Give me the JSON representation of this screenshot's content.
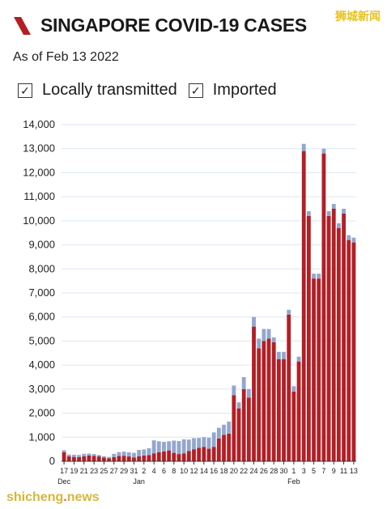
{
  "header": {
    "title": "SINGAPORE COVID-19 CASES",
    "subtitle": "As of Feb 13 2022",
    "watermark_top": "狮城新闻"
  },
  "legend": {
    "local_label": "Locally transmitted",
    "imported_label": "Imported",
    "check_glyph": "✓"
  },
  "watermark_bottom": {
    "left": "shicheng",
    "dot": ".",
    "right": "news"
  },
  "colors": {
    "local": "#b41e24",
    "imported": "#93a6cf",
    "grid": "#dde6f3",
    "brand": "#b41e24"
  },
  "chart_data": {
    "type": "bar",
    "stacked": true,
    "ylim": [
      0,
      14000
    ],
    "yticks": [
      0,
      1000,
      2000,
      3000,
      4000,
      5000,
      6000,
      7000,
      8000,
      9000,
      10000,
      11000,
      12000,
      13000,
      14000
    ],
    "ytick_labels": [
      "0",
      "1,000",
      "2,000",
      "3,000",
      "4,000",
      "5,000",
      "6,000",
      "7,000",
      "8,000",
      "9,000",
      "10,000",
      "11,000",
      "12,000",
      "13,000",
      "14,000"
    ],
    "month_labels": [
      {
        "index": 0,
        "label": "Dec"
      },
      {
        "index": 15,
        "label": "Jan"
      },
      {
        "index": 46,
        "label": "Feb"
      }
    ],
    "categories": [
      "Dec 17",
      "Dec 18",
      "Dec 19",
      "Dec 20",
      "Dec 21",
      "Dec 22",
      "Dec 23",
      "Dec 24",
      "Dec 25",
      "Dec 26",
      "Dec 27",
      "Dec 28",
      "Dec 29",
      "Dec 30",
      "Dec 31",
      "Jan 1",
      "Jan 2",
      "Jan 3",
      "Jan 4",
      "Jan 5",
      "Jan 6",
      "Jan 7",
      "Jan 8",
      "Jan 9",
      "Jan 10",
      "Jan 11",
      "Jan 12",
      "Jan 13",
      "Jan 14",
      "Jan 15",
      "Jan 16",
      "Jan 17",
      "Jan 18",
      "Jan 19",
      "Jan 20",
      "Jan 21",
      "Jan 22",
      "Jan 23",
      "Jan 24",
      "Jan 25",
      "Jan 26",
      "Jan 27",
      "Jan 28",
      "Jan 29",
      "Jan 30",
      "Jan 31",
      "Feb 1",
      "Feb 2",
      "Feb 3",
      "Feb 4",
      "Feb 5",
      "Feb 6",
      "Feb 7",
      "Feb 8",
      "Feb 9",
      "Feb 10",
      "Feb 11",
      "Feb 12",
      "Feb 13"
    ],
    "xtick_labels": [
      "17",
      "19",
      "21",
      "23",
      "25",
      "27",
      "29",
      "31",
      "2",
      "4",
      "6",
      "8",
      "10",
      "12",
      "14",
      "16",
      "18",
      "20",
      "22",
      "24",
      "26",
      "28",
      "30",
      "1",
      "3",
      "5",
      "7",
      "9",
      "11",
      "13"
    ],
    "xtick_indices": [
      0,
      2,
      4,
      6,
      8,
      10,
      12,
      14,
      16,
      18,
      20,
      22,
      24,
      26,
      28,
      30,
      32,
      34,
      36,
      38,
      40,
      42,
      44,
      46,
      48,
      50,
      52,
      54,
      56,
      58
    ],
    "series": [
      {
        "name": "Locally transmitted",
        "values": [
          380,
          200,
          180,
          170,
          210,
          240,
          220,
          200,
          150,
          120,
          170,
          220,
          230,
          200,
          160,
          210,
          240,
          260,
          330,
          380,
          410,
          450,
          350,
          300,
          330,
          430,
          500,
          560,
          600,
          520,
          600,
          950,
          1100,
          1150,
          2750,
          2200,
          3000,
          2650,
          5600,
          4700,
          5000,
          5100,
          4950,
          4250,
          4250,
          6100,
          2900,
          4150,
          12900,
          10200,
          7600,
          7600,
          12800,
          10200,
          10500,
          9700,
          10300,
          9200,
          9100
        ],
        "color": "#b41e24"
      },
      {
        "name": "Imported",
        "values": [
          80,
          80,
          90,
          90,
          100,
          80,
          80,
          60,
          60,
          60,
          140,
          160,
          170,
          170,
          190,
          260,
          250,
          280,
          540,
          450,
          400,
          380,
          510,
          540,
          580,
          470,
          460,
          410,
          400,
          460,
          600,
          440,
          420,
          500,
          400,
          250,
          500,
          350,
          400,
          400,
          500,
          400,
          200,
          300,
          300,
          200,
          220,
          200,
          300,
          200,
          200,
          200,
          200,
          200,
          200,
          200,
          200,
          200,
          200
        ]
      }
    ]
  }
}
